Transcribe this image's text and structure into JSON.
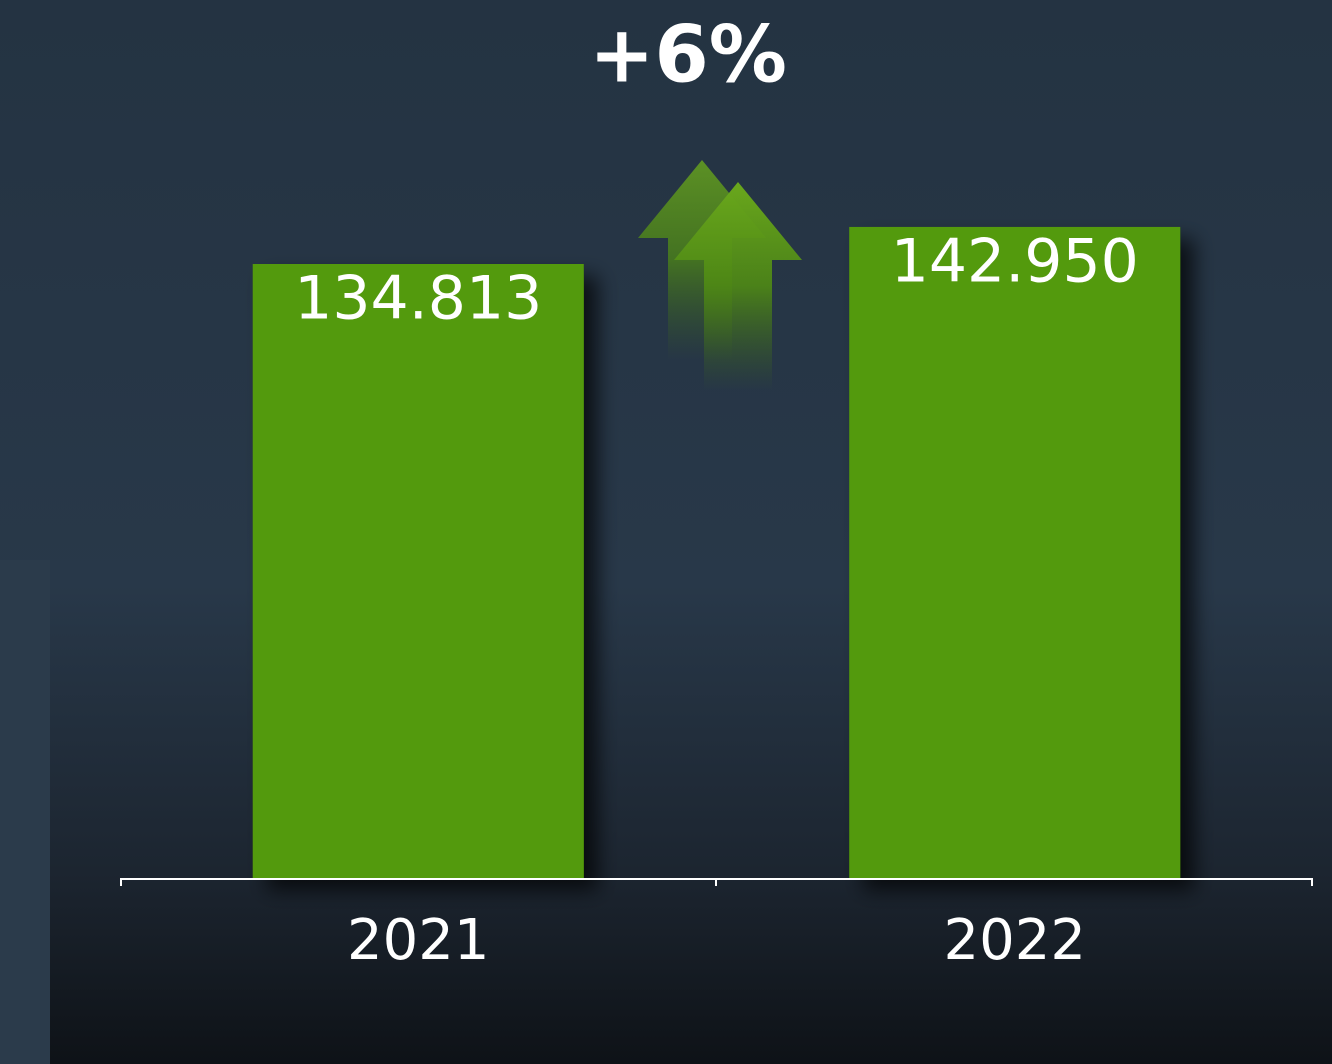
{
  "chart_data": {
    "type": "bar",
    "annotation": "+6%",
    "categories": [
      "2021",
      "2022"
    ],
    "values": [
      134813,
      142950
    ],
    "value_labels": [
      "134.813",
      "142.950"
    ],
    "color": "#529a0a",
    "ylim": [
      0,
      180000
    ]
  }
}
